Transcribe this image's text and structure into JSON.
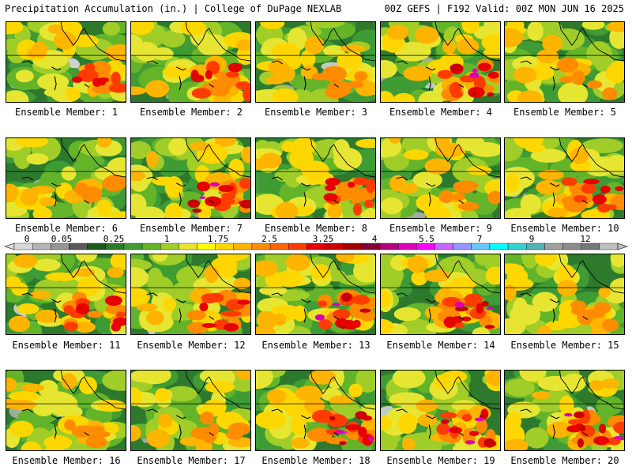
{
  "header": {
    "left_title": "Precipitation Accumulation (in.) | College of DuPage NEXLAB",
    "right_title": "00Z GEFS | F192 Valid: 00Z MON JUN 16 2025"
  },
  "member_prefix": "Ensemble Member: ",
  "members": [
    {
      "label": "Ensemble Member: 1",
      "intensity": 3
    },
    {
      "label": "Ensemble Member: 2",
      "intensity": 3
    },
    {
      "label": "Ensemble Member: 3",
      "intensity": 2
    },
    {
      "label": "Ensemble Member: 4",
      "intensity": 4
    },
    {
      "label": "Ensemble Member: 5",
      "intensity": 2
    },
    {
      "label": "Ensemble Member: 6",
      "intensity": 2
    },
    {
      "label": "Ensemble Member: 7",
      "intensity": 4
    },
    {
      "label": "Ensemble Member: 8",
      "intensity": 3
    },
    {
      "label": "Ensemble Member: 9",
      "intensity": 2
    },
    {
      "label": "Ensemble Member: 10",
      "intensity": 3
    },
    {
      "label": "Ensemble Member: 11",
      "intensity": 3
    },
    {
      "label": "Ensemble Member: 12",
      "intensity": 3
    },
    {
      "label": "Ensemble Member: 13",
      "intensity": 4
    },
    {
      "label": "Ensemble Member: 14",
      "intensity": 4
    },
    {
      "label": "Ensemble Member: 15",
      "intensity": 2
    },
    {
      "label": "Ensemble Member: 16",
      "intensity": 2
    },
    {
      "label": "Ensemble Member: 17",
      "intensity": 2
    },
    {
      "label": "Ensemble Member: 18",
      "intensity": 5
    },
    {
      "label": "Ensemble Member: 19",
      "intensity": 5
    },
    {
      "label": "Ensemble Member: 20",
      "intensity": 4
    }
  ],
  "colorbar": {
    "tick_labels": [
      "0",
      "0.05",
      "0.25",
      "1",
      "1.75",
      "2.5",
      "3.25",
      "4",
      "5.5",
      "7",
      "9",
      "12"
    ],
    "colors": [
      "#d9d9d9",
      "#b4b4b4",
      "#969696",
      "#5a5a5a",
      "#1e5a1e",
      "#2d7a2d",
      "#3f9b34",
      "#64b42a",
      "#a0cd28",
      "#e6e632",
      "#ffff00",
      "#ffd700",
      "#ffb400",
      "#ff8c00",
      "#ff6400",
      "#ff3c00",
      "#e60000",
      "#c80000",
      "#a00000",
      "#820032",
      "#b40078",
      "#dc00b4",
      "#ff00ff",
      "#c864ff",
      "#9696ff",
      "#64c8ff",
      "#00ffff",
      "#32d2d2",
      "#50b4b4",
      "#a0a0a0",
      "#8c8c8c",
      "#787878",
      "#bebebe"
    ]
  }
}
